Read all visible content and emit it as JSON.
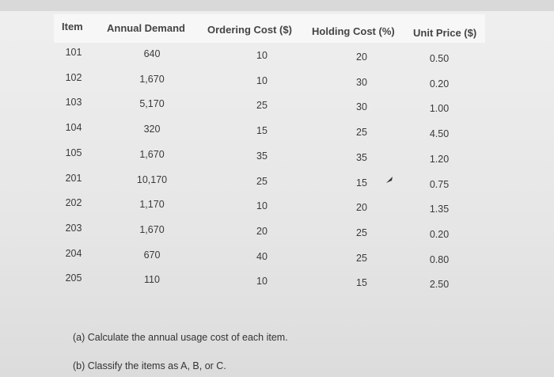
{
  "table": {
    "headers": [
      "Item",
      "Annual Demand",
      "Ordering Cost ($)",
      "Holding Cost (%)",
      "Unit Price ($)"
    ],
    "rows": [
      {
        "item": "101",
        "demand": "640",
        "ordering": "10",
        "holding": "20",
        "price": "0.50"
      },
      {
        "item": "102",
        "demand": "1,670",
        "ordering": "10",
        "holding": "30",
        "price": "0.20"
      },
      {
        "item": "103",
        "demand": "5,170",
        "ordering": "25",
        "holding": "30",
        "price": "1.00"
      },
      {
        "item": "104",
        "demand": "320",
        "ordering": "15",
        "holding": "25",
        "price": "4.50"
      },
      {
        "item": "105",
        "demand": "1,670",
        "ordering": "35",
        "holding": "35",
        "price": "1.20"
      },
      {
        "item": "201",
        "demand": "10,170",
        "ordering": "25",
        "holding": "15",
        "price": "0.75"
      },
      {
        "item": "202",
        "demand": "1,170",
        "ordering": "10",
        "holding": "20",
        "price": "1.35"
      },
      {
        "item": "203",
        "demand": "1,670",
        "ordering": "20",
        "holding": "25",
        "price": "0.20"
      },
      {
        "item": "204",
        "demand": "670",
        "ordering": "40",
        "holding": "25",
        "price": "0.80"
      },
      {
        "item": "205",
        "demand": "110",
        "ordering": "10",
        "holding": "15",
        "price": "2.50"
      }
    ]
  },
  "questions": {
    "a": "(a) Calculate the annual usage cost of each item.",
    "b": "(b) Classify the items as A, B, or C."
  },
  "icons": {
    "cursor": "mouse-pointer-icon"
  }
}
